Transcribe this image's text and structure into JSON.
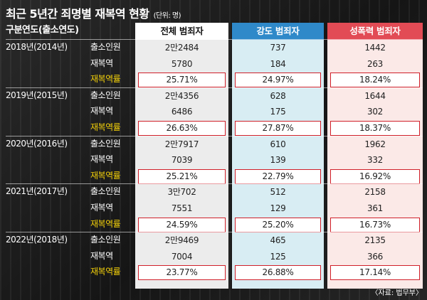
{
  "title": "최근 5년간 죄명별 재복역 현황",
  "unit": "(단위: 명)",
  "header": {
    "category": "구분연도(출소연도)",
    "columns": [
      "전체 범죄자",
      "강도 범죄자",
      "성폭력 범죄자"
    ]
  },
  "row_labels": [
    "출소인원",
    "재복역",
    "재복역률"
  ],
  "groups": [
    {
      "year": "2018년(2014년)",
      "values": [
        [
          "2만2484",
          "737",
          "1442"
        ],
        [
          "5780",
          "184",
          "263"
        ],
        [
          "25.71%",
          "24.97%",
          "18.24%"
        ]
      ]
    },
    {
      "year": "2019년(2015년)",
      "values": [
        [
          "2만4356",
          "628",
          "1644"
        ],
        [
          "6486",
          "175",
          "302"
        ],
        [
          "26.63%",
          "27.87%",
          "18.37%"
        ]
      ]
    },
    {
      "year": "2020년(2016년)",
      "values": [
        [
          "2만7917",
          "610",
          "1962"
        ],
        [
          "7039",
          "139",
          "332"
        ],
        [
          "25.21%",
          "22.79%",
          "16.92%"
        ]
      ]
    },
    {
      "year": "2021년(2017년)",
      "values": [
        [
          "3만702",
          "512",
          "2158"
        ],
        [
          "7551",
          "129",
          "361"
        ],
        [
          "24.59%",
          "25.20%",
          "16.73%"
        ]
      ]
    },
    {
      "year": "2022년(2018년)",
      "values": [
        [
          "2만9469",
          "465",
          "2135"
        ],
        [
          "7004",
          "125",
          "366"
        ],
        [
          "23.77%",
          "26.88%",
          "17.14%"
        ]
      ]
    }
  ],
  "source": "〈자료: 법무부〉",
  "colors": {
    "total_header": "#ffffff",
    "robbery_header": "#2f89c9",
    "sexual_header": "#e24b55",
    "rate_label": "#f5d20a",
    "rate_border": "#d0202a"
  }
}
